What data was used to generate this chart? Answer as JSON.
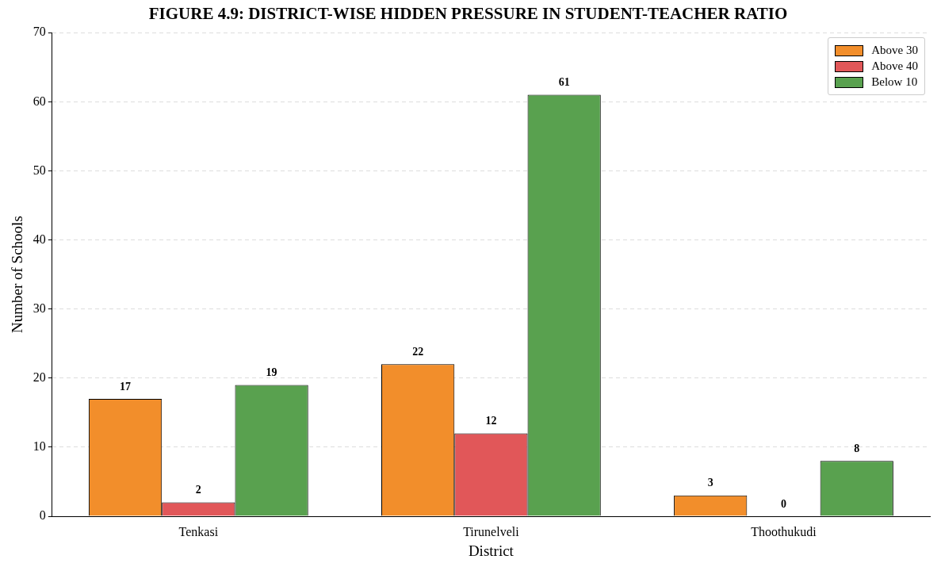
{
  "chart_data": {
    "type": "bar",
    "title": "FIGURE 4.9: DISTRICT-WISE HIDDEN PRESSURE IN STUDENT-TEACHER RATIO",
    "xlabel": "District",
    "ylabel": "Number of Schools",
    "categories": [
      "Tenkasi",
      "Tirunelveli",
      "Thoothukudi"
    ],
    "series": [
      {
        "name": "Above 30",
        "color": "#f28e2b",
        "values": [
          17,
          22,
          3
        ]
      },
      {
        "name": "Above 40",
        "color": "#e15759",
        "values": [
          2,
          12,
          0
        ]
      },
      {
        "name": "Below 10",
        "color": "#59a14f",
        "values": [
          19,
          61,
          8
        ]
      }
    ],
    "ylim": [
      0,
      70
    ],
    "yticks": [
      0,
      10,
      20,
      30,
      40,
      50,
      60,
      70
    ],
    "grid": "y",
    "legend": "top right",
    "data_labels": true
  }
}
